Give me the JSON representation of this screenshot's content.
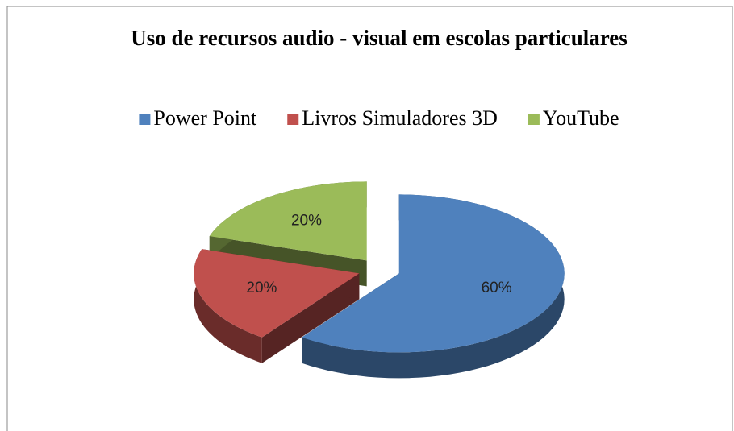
{
  "chart_data": {
    "type": "pie",
    "title": "Uso de recursos audio - visual em escolas particulares",
    "categories": [
      "Power Point",
      "Livros Simuladores 3D",
      "YouTube"
    ],
    "values": [
      60,
      20,
      20
    ],
    "value_labels": [
      "60%",
      "20%",
      "20%"
    ],
    "colors": [
      "#4f81bd",
      "#c0504d",
      "#9bbb59"
    ],
    "legend": "top"
  }
}
